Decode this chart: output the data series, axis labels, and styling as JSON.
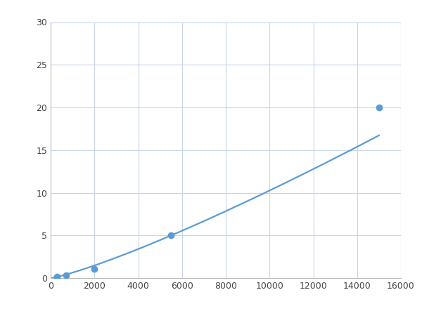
{
  "x_points": [
    300,
    700,
    2000,
    5500,
    15000
  ],
  "y_points": [
    0.2,
    0.35,
    1.1,
    5.0,
    20.0
  ],
  "line_color": "#5b9bd5",
  "marker_color": "#5b9bd5",
  "marker_size": 6,
  "line_width": 1.6,
  "xlim": [
    0,
    16000
  ],
  "ylim": [
    0,
    30
  ],
  "xticks": [
    0,
    2000,
    4000,
    6000,
    8000,
    10000,
    12000,
    14000,
    16000
  ],
  "yticks": [
    0,
    5,
    10,
    15,
    20,
    25,
    30
  ],
  "grid_color": "#c8d4e8",
  "background_color": "#ffffff",
  "fig_bg_color": "#ffffff"
}
